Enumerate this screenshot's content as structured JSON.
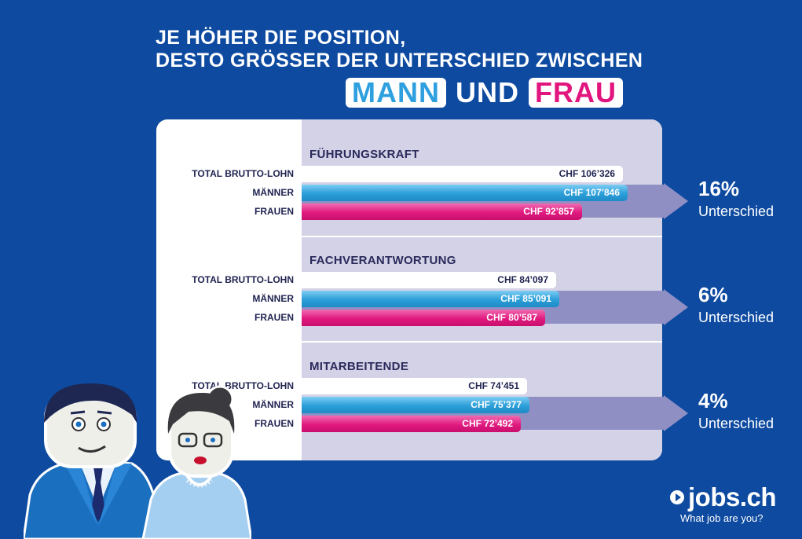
{
  "header": {
    "title_line1": "JE HÖHER DIE POSITION,",
    "title_line2": "DESTO GRÖSSER DER UNTERSCHIED ZWISCHEN",
    "word_man": "MANN",
    "word_and": "UND",
    "word_woman": "FRAU"
  },
  "chart_data": {
    "type": "bar",
    "orientation": "horizontal",
    "currency": "CHF",
    "row_labels": [
      "TOTAL BRUTTO-LOHN",
      "MÄNNER",
      "FRAUEN"
    ],
    "series_colors": {
      "total": "#ffffff",
      "men": "#2b9ed8",
      "women": "#e0197f"
    },
    "groups": [
      {
        "name": "FÜHRUNGSKRAFT",
        "values": [
          106326,
          107846,
          92857
        ],
        "value_labels": [
          "CHF 106’326",
          "CHF 107’846",
          "CHF 92’857"
        ],
        "difference": "16%",
        "difference_word": "Unterschied"
      },
      {
        "name": "FACHVERANTWORTUNG",
        "values": [
          84097,
          85091,
          80587
        ],
        "value_labels": [
          "CHF 84’097",
          "CHF 85’091",
          "CHF 80’587"
        ],
        "difference": "6%",
        "difference_word": "Unterschied"
      },
      {
        "name": "MITARBEITENDE",
        "values": [
          74451,
          75377,
          72492
        ],
        "value_labels": [
          "CHF 74’451",
          "CHF 75’377",
          "CHF 72’492"
        ],
        "difference": "4%",
        "difference_word": "Unterschied"
      }
    ]
  },
  "footer": {
    "brand": "jobs.ch",
    "tagline": "What job are you?"
  },
  "colors": {
    "background": "#0d4aa0",
    "panel_right": "#d3d2e6",
    "arrow": "#8f8fc4",
    "men": "#2b9ed8",
    "women": "#e0197f",
    "text_dark": "#1f2350"
  },
  "icons": [
    "man-illustration",
    "woman-illustration",
    "play-arrow-icon"
  ]
}
